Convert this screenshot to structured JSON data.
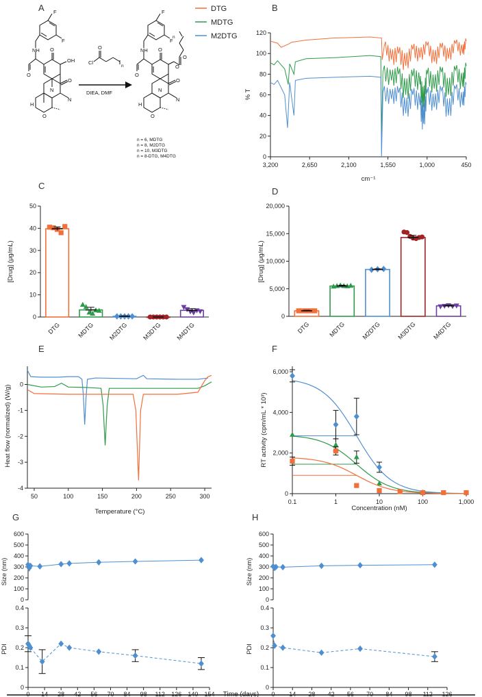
{
  "panels": {
    "A": "A",
    "B": "B",
    "C": "C",
    "D": "D",
    "E": "E",
    "F": "F",
    "G": "G",
    "H": "H"
  },
  "colors": {
    "DTG": "#f26f3a",
    "MDTG": "#2e9a4a",
    "M2DTG": "#4f8fd0",
    "M3DTG": "#a02326",
    "M4DTG": "#6a3fa0",
    "blue": "#4f8fd0"
  },
  "scheme": {
    "reagent_top": "Cl",
    "reagent_n": "n",
    "conditions": "DIEA, DMF",
    "n_list": [
      "n = 6, MDTG",
      "n = 8, M2DTG",
      "n = 10, M3DTG",
      "n = 8-DTG, M4DTG"
    ],
    "atoms": {
      "F": "F",
      "NH": "NH",
      "O": "O",
      "OH": "OH",
      "N": "N",
      "H": "H",
      "n": "n"
    }
  },
  "chart_data": [
    {
      "panel": "B",
      "type": "line",
      "legend": [
        "DTG",
        "MDTG",
        "M2DTG"
      ],
      "ylabel": "% T",
      "xlabel": "cm⁻¹",
      "xlim": [
        3200,
        450
      ],
      "ylim": [
        0,
        120
      ],
      "xticks": [
        "3,200",
        "2,650",
        "2,100",
        "1,550",
        "1,000",
        "450"
      ],
      "yticks": [
        "0",
        "20",
        "40",
        "60",
        "80",
        "100",
        "120"
      ],
      "series": [
        {
          "name": "DTG",
          "baseline": 115,
          "points": [
            [
              3200,
              112
            ],
            [
              3100,
              110
            ],
            [
              3050,
              106
            ],
            [
              2950,
              109
            ],
            [
              2900,
              111
            ],
            [
              2700,
              113
            ],
            [
              2300,
              115
            ],
            [
              1800,
              116
            ],
            [
              1640,
              115
            ],
            [
              1630,
              94
            ],
            [
              1600,
              108
            ],
            [
              1500,
              94
            ],
            [
              1400,
              100
            ],
            [
              1300,
              88
            ],
            [
              1200,
              104
            ],
            [
              1100,
              96
            ],
            [
              1000,
              108
            ],
            [
              900,
              92
            ],
            [
              800,
              106
            ],
            [
              700,
              95
            ],
            [
              600,
              110
            ],
            [
              500,
              100
            ],
            [
              450,
              112
            ]
          ]
        },
        {
          "name": "MDTG",
          "baseline": 96,
          "points": [
            [
              3200,
              91
            ],
            [
              3150,
              89
            ],
            [
              3100,
              93
            ],
            [
              3000,
              85
            ],
            [
              2950,
              70
            ],
            [
              2930,
              90
            ],
            [
              2870,
              80
            ],
            [
              2850,
              92
            ],
            [
              2700,
              95
            ],
            [
              2300,
              96
            ],
            [
              1800,
              98
            ],
            [
              1650,
              97
            ],
            [
              1640,
              18
            ],
            [
              1620,
              82
            ],
            [
              1500,
              74
            ],
            [
              1400,
              80
            ],
            [
              1300,
              60
            ],
            [
              1200,
              78
            ],
            [
              1100,
              70
            ],
            [
              1050,
              48
            ],
            [
              1000,
              80
            ],
            [
              900,
              66
            ],
            [
              800,
              82
            ],
            [
              700,
              60
            ],
            [
              600,
              84
            ],
            [
              500,
              68
            ],
            [
              450,
              88
            ]
          ]
        },
        {
          "name": "M2DTG",
          "baseline": 76,
          "points": [
            [
              3200,
              72
            ],
            [
              3150,
              70
            ],
            [
              3100,
              74
            ],
            [
              3000,
              60
            ],
            [
              2960,
              28
            ],
            [
              2930,
              72
            ],
            [
              2870,
              40
            ],
            [
              2850,
              74
            ],
            [
              2700,
              76
            ],
            [
              2300,
              77
            ],
            [
              1800,
              78
            ],
            [
              1650,
              77
            ],
            [
              1640,
              0
            ],
            [
              1620,
              62
            ],
            [
              1500,
              56
            ],
            [
              1400,
              62
            ],
            [
              1300,
              42
            ],
            [
              1200,
              60
            ],
            [
              1100,
              50
            ],
            [
              1050,
              32
            ],
            [
              1000,
              62
            ],
            [
              900,
              48
            ],
            [
              800,
              64
            ],
            [
              700,
              40
            ],
            [
              600,
              66
            ],
            [
              500,
              50
            ],
            [
              450,
              70
            ]
          ]
        }
      ]
    },
    {
      "panel": "C",
      "type": "bar",
      "categories": [
        "DTG",
        "MDTG",
        "M2DTG",
        "M3DTG",
        "M4DTG"
      ],
      "values": [
        39.8,
        3.2,
        0.3,
        0.0,
        3.0
      ],
      "errors": [
        0.8,
        1.2,
        0.2,
        0.0,
        0.8
      ],
      "points": [
        [
          40.5,
          40.2,
          39.5,
          38.0,
          40.8
        ],
        [
          5.5,
          4.5,
          2.0,
          1.5,
          3.0,
          2.8
        ],
        [
          0.3,
          0.3,
          0.3,
          0.3,
          0.3
        ],
        [
          0,
          0,
          0,
          0,
          0,
          0
        ],
        [
          4.5,
          3.5,
          2.5,
          2.0,
          3.0,
          2.6
        ]
      ],
      "markers": [
        "square",
        "triangle",
        "diamond",
        "circle",
        "triangle-down"
      ],
      "ylabel": "[Drug] (μg/mL)",
      "ylim": [
        0,
        50
      ],
      "yticks": [
        "0",
        "10",
        "20",
        "30",
        "40",
        "50"
      ]
    },
    {
      "panel": "D",
      "type": "bar",
      "categories": [
        "DTG",
        "MDTG",
        "M2DTG",
        "M3DTG",
        "M4DTG"
      ],
      "values": [
        1000,
        5500,
        8500,
        14300,
        1900
      ],
      "errors": [
        100,
        150,
        120,
        400,
        120
      ],
      "points": [
        [
          1000,
          1000,
          1000,
          1000,
          1000
        ],
        [
          5400,
          5500,
          5600,
          5500,
          5450,
          5550
        ],
        [
          8450,
          8550,
          8600
        ],
        [
          15300,
          15200,
          14500,
          14200,
          14100,
          14300,
          14400
        ],
        [
          1800,
          1900,
          2000,
          1850,
          1950
        ]
      ],
      "markers": [
        "square",
        "triangle",
        "diamond",
        "circle",
        "triangle-down"
      ],
      "ylabel": "[Drug] (μg/mL)",
      "ylim": [
        0,
        20000
      ],
      "yticks": [
        "0",
        "5,000",
        "10,000",
        "15,000",
        "20,000"
      ]
    },
    {
      "panel": "E",
      "type": "line",
      "xlabel": "Temperature (°C)",
      "ylabel": "Heat flow (normalized) (W/g)",
      "xlim": [
        40,
        310
      ],
      "ylim": [
        -4,
        0.7
      ],
      "xticks": [
        "50",
        "100",
        "150",
        "200",
        "250",
        "300"
      ],
      "yticks": [
        "-4",
        "-3",
        "-2",
        "-1",
        "0"
      ],
      "series": [
        {
          "name": "M2DTG",
          "points": [
            [
              40,
              0.55
            ],
            [
              45,
              0.3
            ],
            [
              60,
              0.28
            ],
            [
              85,
              0.28
            ],
            [
              100,
              0.3
            ],
            [
              115,
              0.3
            ],
            [
              120,
              0.2
            ],
            [
              122,
              -0.4
            ],
            [
              124,
              -1.55
            ],
            [
              126,
              -0.5
            ],
            [
              128,
              0.2
            ],
            [
              140,
              0.25
            ],
            [
              200,
              0.22
            ],
            [
              210,
              0.35
            ],
            [
              215,
              0.22
            ],
            [
              260,
              0.2
            ],
            [
              290,
              0.2
            ],
            [
              305,
              0.25
            ]
          ]
        },
        {
          "name": "MDTG",
          "points": [
            [
              40,
              0.0
            ],
            [
              60,
              -0.1
            ],
            [
              80,
              -0.08
            ],
            [
              90,
              0.05
            ],
            [
              100,
              -0.1
            ],
            [
              130,
              -0.12
            ],
            [
              148,
              -0.15
            ],
            [
              151,
              -0.8
            ],
            [
              154,
              -2.35
            ],
            [
              157,
              -0.8
            ],
            [
              160,
              -0.15
            ],
            [
              200,
              -0.15
            ],
            [
              260,
              -0.15
            ],
            [
              290,
              -0.15
            ],
            [
              300,
              -0.05
            ],
            [
              310,
              0.1
            ]
          ]
        },
        {
          "name": "DTG",
          "points": [
            [
              40,
              -0.2
            ],
            [
              50,
              -0.35
            ],
            [
              100,
              -0.38
            ],
            [
              150,
              -0.38
            ],
            [
              195,
              -0.38
            ],
            [
              199,
              -1.0
            ],
            [
              203,
              -3.7
            ],
            [
              206,
              -1.0
            ],
            [
              210,
              -0.38
            ],
            [
              260,
              -0.38
            ],
            [
              290,
              -0.3
            ],
            [
              300,
              0.15
            ],
            [
              305,
              0.3
            ],
            [
              310,
              0.35
            ]
          ]
        }
      ]
    },
    {
      "panel": "F",
      "type": "scatter",
      "xlabel": "Concentration (nM)",
      "ylabel": "RT activity (cpm/mL * 10³)",
      "xscale": "log",
      "xlim": [
        0.1,
        1000
      ],
      "ylim": [
        0,
        6000
      ],
      "xticks": [
        "0.1",
        "1",
        "10",
        "100",
        "1,000"
      ],
      "yticks": [
        "0",
        "2,000",
        "4,000",
        "6,000"
      ],
      "series": [
        {
          "name": "M2DTG",
          "x": [
            0.1,
            1,
            3,
            10,
            100
          ],
          "y": [
            5800,
            3400,
            3800,
            1300,
            50
          ],
          "err": [
            300,
            700,
            900,
            250,
            30
          ],
          "top": 5700,
          "ic50": 3
        },
        {
          "name": "MDTG",
          "x": [
            0.1,
            1,
            3,
            10,
            100
          ],
          "y": [
            2900,
            2400,
            1800,
            500,
            30
          ],
          "err": [
            0,
            300,
            300,
            0,
            0
          ],
          "top": 2900,
          "ic50": 3
        },
        {
          "name": "DTG",
          "x": [
            0.1,
            1,
            3,
            10,
            30,
            100,
            300,
            1000
          ],
          "y": [
            1600,
            2100,
            400,
            150,
            100,
            50,
            50,
            50
          ],
          "err": [
            200,
            200,
            0,
            0,
            0,
            0,
            0,
            0
          ],
          "top": 1800,
          "ic50": 3
        }
      ]
    },
    {
      "panel": "G",
      "type": "line",
      "xlabel": "Time (days)",
      "xlim": [
        0,
        154
      ],
      "xticks": [
        "0",
        "14",
        "28",
        "42",
        "56",
        "70",
        "84",
        "98",
        "112",
        "126",
        "140",
        "154"
      ],
      "size": {
        "ylabel": "Size (nm)",
        "ylim": [
          0,
          600
        ],
        "yticks": [
          "0",
          "100",
          "200",
          "300",
          "400",
          "500",
          "600"
        ],
        "x": [
          0,
          1,
          2,
          10,
          28,
          35,
          60,
          91,
          147
        ],
        "y": [
          320,
          290,
          310,
          305,
          325,
          332,
          342,
          350,
          362
        ],
        "err": [
          20,
          30,
          0,
          0,
          0,
          0,
          0,
          0,
          0
        ]
      },
      "pdi": {
        "ylabel": "PDI",
        "ylim": [
          0,
          0.4
        ],
        "yticks": [
          "0",
          "0.1",
          "0.2",
          "0.3",
          "0.4"
        ],
        "x": [
          0,
          1,
          2,
          12,
          28,
          35,
          60,
          91,
          147
        ],
        "y": [
          0.22,
          0.21,
          0.2,
          0.13,
          0.22,
          0.2,
          0.18,
          0.16,
          0.12
        ],
        "err": [
          0.04,
          0,
          0,
          0.06,
          0,
          0,
          0,
          0.03,
          0.03
        ]
      }
    },
    {
      "panel": "H",
      "type": "line",
      "xlim": [
        0,
        126
      ],
      "xticks": [
        "0",
        "14",
        "28",
        "42",
        "56",
        "70",
        "84",
        "98",
        "112",
        "126"
      ],
      "size": {
        "ylabel": "Size (nm)",
        "ylim": [
          0,
          600
        ],
        "yticks": [
          "0",
          "100",
          "200",
          "300",
          "400",
          "500",
          "600"
        ],
        "x": [
          0,
          1,
          2,
          7,
          35,
          63,
          117
        ],
        "y": [
          305,
          290,
          300,
          298,
          310,
          315,
          320
        ],
        "err": [
          20,
          20,
          0,
          0,
          0,
          0,
          0
        ]
      },
      "pdi": {
        "ylabel": "PDI",
        "ylim": [
          0,
          0.4
        ],
        "yticks": [
          "0",
          "0.1",
          "0.2",
          "0.3",
          "0.4"
        ],
        "x": [
          0,
          1,
          7,
          35,
          63,
          117
        ],
        "y": [
          0.26,
          0.21,
          0.2,
          0.175,
          0.195,
          0.155
        ],
        "err": [
          0,
          0,
          0,
          0,
          0,
          0.025
        ]
      }
    }
  ]
}
